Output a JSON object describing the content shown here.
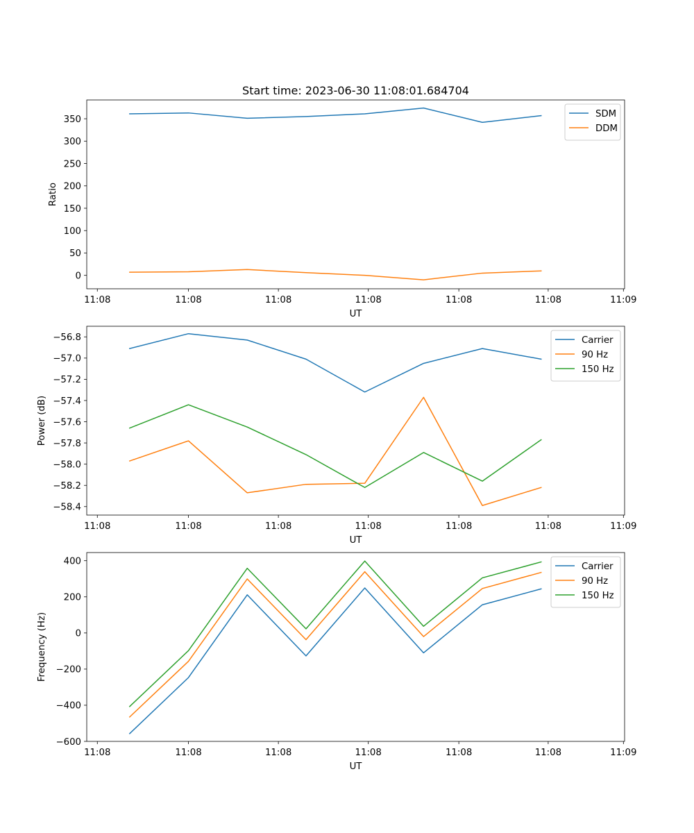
{
  "figure": {
    "title": "Start time: 2023-06-30 11:08:01.684704"
  },
  "chart_data": [
    {
      "type": "line",
      "title": "Start time: 2023-06-30 11:08:01.684704",
      "xlabel": "UT",
      "ylabel": "Ratio",
      "x": [
        1,
        2,
        3,
        4,
        5,
        6,
        7,
        8
      ],
      "xlim": [
        0.27,
        9.42
      ],
      "ylim": [
        -30,
        392
      ],
      "x_ticks": [
        {
          "value": 0.45,
          "label": "11:08"
        },
        {
          "value": 2,
          "label": "11:08"
        },
        {
          "value": 3.53,
          "label": "11:08"
        },
        {
          "value": 5.06,
          "label": "11:08"
        },
        {
          "value": 6.6,
          "label": "11:08"
        },
        {
          "value": 8.12,
          "label": "11:08"
        },
        {
          "value": 9.4,
          "label": "11:09"
        }
      ],
      "y_ticks": [
        {
          "value": 0,
          "label": "0"
        },
        {
          "value": 50,
          "label": "50"
        },
        {
          "value": 100,
          "label": "100"
        },
        {
          "value": 150,
          "label": "150"
        },
        {
          "value": 200,
          "label": "200"
        },
        {
          "value": 250,
          "label": "250"
        },
        {
          "value": 300,
          "label": "300"
        },
        {
          "value": 350,
          "label": "350"
        }
      ],
      "grid": false,
      "legend": "top-right",
      "series": [
        {
          "name": "SDM",
          "color": "#1f77b4",
          "values": [
            361,
            363,
            351,
            355,
            361,
            374,
            342,
            357
          ]
        },
        {
          "name": "DDM",
          "color": "#ff7f0e",
          "values": [
            7,
            8,
            13,
            6,
            0,
            -10,
            5,
            10
          ]
        }
      ]
    },
    {
      "type": "line",
      "xlabel": "UT",
      "ylabel": "Power (dB)",
      "x": [
        1,
        2,
        3,
        4,
        5,
        6,
        7,
        8
      ],
      "xlim": [
        0.27,
        9.42
      ],
      "ylim": [
        -58.48,
        -56.7
      ],
      "x_ticks": [
        {
          "value": 0.45,
          "label": "11:08"
        },
        {
          "value": 2,
          "label": "11:08"
        },
        {
          "value": 3.53,
          "label": "11:08"
        },
        {
          "value": 5.06,
          "label": "11:08"
        },
        {
          "value": 6.6,
          "label": "11:08"
        },
        {
          "value": 8.12,
          "label": "11:08"
        },
        {
          "value": 9.4,
          "label": "11:09"
        }
      ],
      "y_ticks": [
        {
          "value": -58.4,
          "label": "−58.4"
        },
        {
          "value": -58.2,
          "label": "−58.2"
        },
        {
          "value": -58.0,
          "label": "−58.0"
        },
        {
          "value": -57.8,
          "label": "−57.8"
        },
        {
          "value": -57.6,
          "label": "−57.6"
        },
        {
          "value": -57.4,
          "label": "−57.4"
        },
        {
          "value": -57.2,
          "label": "−57.2"
        },
        {
          "value": -57.0,
          "label": "−57.0"
        },
        {
          "value": -56.8,
          "label": "−56.8"
        }
      ],
      "grid": false,
      "legend": "top-right",
      "series": [
        {
          "name": "Carrier",
          "color": "#1f77b4",
          "values": [
            -56.91,
            -56.77,
            -56.83,
            -57.01,
            -57.32,
            -57.05,
            -56.91,
            -57.01
          ]
        },
        {
          "name": "90 Hz",
          "color": "#ff7f0e",
          "values": [
            -57.97,
            -57.78,
            -58.27,
            -58.19,
            -58.18,
            -57.37,
            -58.39,
            -58.22
          ]
        },
        {
          "name": "150 Hz",
          "color": "#2ca02c",
          "values": [
            -57.66,
            -57.44,
            -57.65,
            -57.91,
            -58.22,
            -57.89,
            -58.16,
            -57.77
          ]
        }
      ]
    },
    {
      "type": "line",
      "xlabel": "UT",
      "ylabel": "Frequency (Hz)",
      "x": [
        1,
        2,
        3,
        4,
        5,
        6,
        7,
        8
      ],
      "xlim": [
        0.27,
        9.42
      ],
      "ylim": [
        -600,
        445
      ],
      "x_ticks": [
        {
          "value": 0.45,
          "label": "11:08"
        },
        {
          "value": 2,
          "label": "11:08"
        },
        {
          "value": 3.53,
          "label": "11:08"
        },
        {
          "value": 5.06,
          "label": "11:08"
        },
        {
          "value": 6.6,
          "label": "11:08"
        },
        {
          "value": 8.12,
          "label": "11:08"
        },
        {
          "value": 9.4,
          "label": "11:09"
        }
      ],
      "y_ticks": [
        {
          "value": -600,
          "label": "−600"
        },
        {
          "value": -400,
          "label": "−400"
        },
        {
          "value": -200,
          "label": "−200"
        },
        {
          "value": 0,
          "label": "0"
        },
        {
          "value": 200,
          "label": "200"
        },
        {
          "value": 400,
          "label": "400"
        }
      ],
      "grid": false,
      "legend": "top-right",
      "series": [
        {
          "name": "Carrier",
          "color": "#1f77b4",
          "values": [
            -557,
            -247,
            211,
            -127,
            249,
            -110,
            156,
            244
          ]
        },
        {
          "name": "90 Hz",
          "color": "#ff7f0e",
          "values": [
            -465,
            -157,
            299,
            -37,
            339,
            -20,
            246,
            335
          ]
        },
        {
          "name": "150 Hz",
          "color": "#2ca02c",
          "values": [
            -407,
            -98,
            358,
            23,
            398,
            37,
            305,
            393
          ]
        }
      ]
    }
  ]
}
